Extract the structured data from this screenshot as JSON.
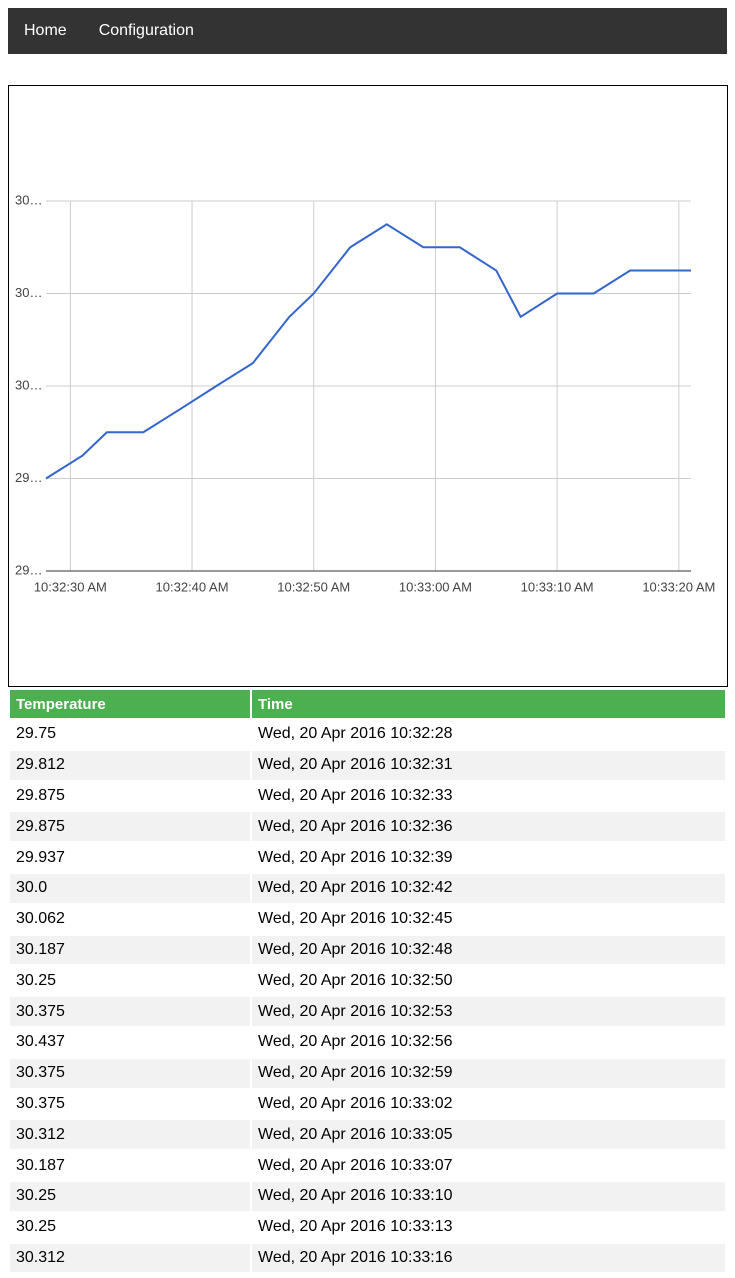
{
  "nav": {
    "items": [
      "Home",
      "Configuration"
    ]
  },
  "chart_data": {
    "type": "line",
    "x": [
      "10:32:28 AM",
      "10:32:31 AM",
      "10:32:33 AM",
      "10:32:36 AM",
      "10:32:39 AM",
      "10:32:42 AM",
      "10:32:45 AM",
      "10:32:48 AM",
      "10:32:50 AM",
      "10:32:53 AM",
      "10:32:56 AM",
      "10:32:59 AM",
      "10:33:02 AM",
      "10:33:05 AM",
      "10:33:07 AM",
      "10:33:10 AM",
      "10:33:13 AM",
      "10:33:16 AM",
      "10:33:21 AM"
    ],
    "series": [
      {
        "color": "#3366cc",
        "values": [
          29.75,
          29.812,
          29.875,
          29.875,
          29.937,
          30.0,
          30.062,
          30.187,
          30.25,
          30.375,
          30.437,
          30.375,
          30.375,
          30.312,
          30.187,
          30.25,
          30.25,
          30.312,
          30.312
        ]
      }
    ],
    "xlim": [
      "10:32:28 AM",
      "10:33:21 AM"
    ],
    "xticks": [
      "10:32:30 AM",
      "10:32:40 AM",
      "10:32:50 AM",
      "10:33:00 AM",
      "10:33:10 AM",
      "10:33:20 AM"
    ],
    "ylim": [
      29.5,
      30.5
    ],
    "yticks": [
      {
        "value": 29.5,
        "label": "29…"
      },
      {
        "value": 29.75,
        "label": "29…"
      },
      {
        "value": 30.0,
        "label": "30…"
      },
      {
        "value": 30.25,
        "label": "30…"
      },
      {
        "value": 30.5,
        "label": "30…"
      }
    ],
    "grid": true
  },
  "table": {
    "header": [
      "Temperature",
      "Time"
    ],
    "rows": [
      [
        "29.75",
        "Wed, 20 Apr 2016 10:32:28"
      ],
      [
        "29.812",
        "Wed, 20 Apr 2016 10:32:31"
      ],
      [
        "29.875",
        "Wed, 20 Apr 2016 10:32:33"
      ],
      [
        "29.875",
        "Wed, 20 Apr 2016 10:32:36"
      ],
      [
        "29.937",
        "Wed, 20 Apr 2016 10:32:39"
      ],
      [
        "30.0",
        "Wed, 20 Apr 2016 10:32:42"
      ],
      [
        "30.062",
        "Wed, 20 Apr 2016 10:32:45"
      ],
      [
        "30.187",
        "Wed, 20 Apr 2016 10:32:48"
      ],
      [
        "30.25",
        "Wed, 20 Apr 2016 10:32:50"
      ],
      [
        "30.375",
        "Wed, 20 Apr 2016 10:32:53"
      ],
      [
        "30.437",
        "Wed, 20 Apr 2016 10:32:56"
      ],
      [
        "30.375",
        "Wed, 20 Apr 2016 10:32:59"
      ],
      [
        "30.375",
        "Wed, 20 Apr 2016 10:33:02"
      ],
      [
        "30.312",
        "Wed, 20 Apr 2016 10:33:05"
      ],
      [
        "30.187",
        "Wed, 20 Apr 2016 10:33:07"
      ],
      [
        "30.25",
        "Wed, 20 Apr 2016 10:33:10"
      ],
      [
        "30.25",
        "Wed, 20 Apr 2016 10:33:13"
      ],
      [
        "30.312",
        "Wed, 20 Apr 2016 10:33:16"
      ]
    ]
  }
}
